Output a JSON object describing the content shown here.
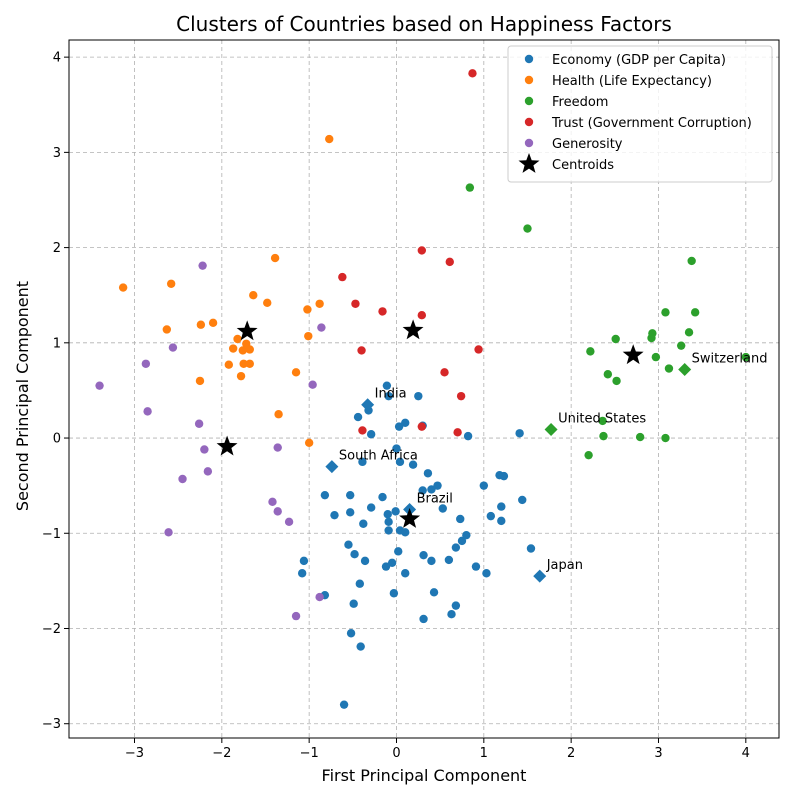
{
  "chart_data": {
    "type": "scatter",
    "title": "Clusters of Countries based on Happiness Factors",
    "xlabel": "First Principal Component",
    "ylabel": "Second Principal Component",
    "xlim": [
      -3.75,
      4.38
    ],
    "ylim": [
      -3.15,
      4.18
    ],
    "xticks": [
      -3,
      -2,
      -1,
      0,
      1,
      2,
      3,
      4
    ],
    "yticks": [
      -3,
      -2,
      -1,
      0,
      1,
      2,
      3,
      4
    ],
    "xtick_labels": [
      "−3",
      "−2",
      "−1",
      "0",
      "1",
      "2",
      "3",
      "4"
    ],
    "ytick_labels": [
      "−3",
      "−2",
      "−1",
      "0",
      "1",
      "2",
      "3",
      "4"
    ],
    "grid": true,
    "legend_position": "top-right",
    "series": [
      {
        "name": "Economy (GDP per Capita)",
        "color": "#1f77b4",
        "points": [
          [
            -0.6,
            -2.8
          ],
          [
            -0.41,
            -2.19
          ],
          [
            -0.52,
            -2.05
          ],
          [
            -0.49,
            -1.74
          ],
          [
            -0.82,
            -1.65
          ],
          [
            -0.42,
            -1.53
          ],
          [
            -0.03,
            -1.63
          ],
          [
            -1.08,
            -1.42
          ],
          [
            -1.06,
            -1.29
          ],
          [
            -0.55,
            -1.12
          ],
          [
            -0.48,
            -1.22
          ],
          [
            -0.36,
            -1.29
          ],
          [
            -0.12,
            -1.35
          ],
          [
            -0.05,
            -1.31
          ],
          [
            0.02,
            -1.19
          ],
          [
            0.1,
            -1.42
          ],
          [
            0.31,
            -1.23
          ],
          [
            0.4,
            -1.29
          ],
          [
            0.43,
            -1.62
          ],
          [
            0.31,
            -1.9
          ],
          [
            0.63,
            -1.85
          ],
          [
            0.68,
            -1.76
          ],
          [
            0.6,
            -1.28
          ],
          [
            0.68,
            -1.15
          ],
          [
            0.75,
            -1.08
          ],
          [
            0.8,
            -1.02
          ],
          [
            0.91,
            -1.35
          ],
          [
            1.03,
            -1.42
          ],
          [
            1.54,
            -1.16
          ],
          [
            -0.82,
            -0.6
          ],
          [
            -0.71,
            -0.81
          ],
          [
            -0.53,
            -0.78
          ],
          [
            -0.53,
            -0.6
          ],
          [
            -0.38,
            -0.9
          ],
          [
            -0.29,
            -0.73
          ],
          [
            -0.16,
            -0.62
          ],
          [
            -0.1,
            -0.8
          ],
          [
            -0.09,
            -0.88
          ],
          [
            -0.09,
            -0.97
          ],
          [
            -0.01,
            -0.77
          ],
          [
            0.04,
            -0.97
          ],
          [
            0.1,
            -0.99
          ],
          [
            0.3,
            -0.55
          ],
          [
            0.4,
            -0.54
          ],
          [
            0.47,
            -0.5
          ],
          [
            0.53,
            -0.74
          ],
          [
            0.73,
            -0.85
          ],
          [
            1.0,
            -0.5
          ],
          [
            1.08,
            -0.82
          ],
          [
            1.2,
            -0.72
          ],
          [
            1.2,
            -0.87
          ],
          [
            1.18,
            -0.39
          ],
          [
            1.23,
            -0.4
          ],
          [
            1.44,
            -0.65
          ],
          [
            -0.39,
            -0.25
          ],
          [
            0.04,
            -0.25
          ],
          [
            0.19,
            -0.28
          ],
          [
            0.36,
            -0.37
          ],
          [
            0.0,
            -0.11
          ],
          [
            -0.44,
            0.22
          ],
          [
            -0.32,
            0.29
          ],
          [
            -0.29,
            0.04
          ],
          [
            0.03,
            0.12
          ],
          [
            0.1,
            0.16
          ],
          [
            0.25,
            0.44
          ],
          [
            0.3,
            0.13
          ],
          [
            0.82,
            0.02
          ],
          [
            1.41,
            0.05
          ],
          [
            -0.11,
            0.55
          ],
          [
            -0.09,
            0.44
          ]
        ]
      },
      {
        "name": "Health (Life Expectancy)",
        "color": "#ff7f0e",
        "points": [
          [
            -0.77,
            3.14
          ],
          [
            -3.13,
            1.58
          ],
          [
            -2.58,
            1.62
          ],
          [
            -1.39,
            1.89
          ],
          [
            -1.64,
            1.5
          ],
          [
            -1.48,
            1.42
          ],
          [
            -0.88,
            1.41
          ],
          [
            -1.02,
            1.35
          ],
          [
            -2.1,
            1.21
          ],
          [
            -2.24,
            1.19
          ],
          [
            -2.63,
            1.14
          ],
          [
            -1.82,
            1.04
          ],
          [
            -1.72,
            0.99
          ],
          [
            -1.76,
            0.92
          ],
          [
            -1.87,
            0.94
          ],
          [
            -1.68,
            0.93
          ],
          [
            -1.75,
            0.78
          ],
          [
            -1.92,
            0.77
          ],
          [
            -1.68,
            0.78
          ],
          [
            -1.01,
            1.07
          ],
          [
            -1.15,
            0.69
          ],
          [
            -1.78,
            0.65
          ],
          [
            -2.25,
            0.6
          ],
          [
            -1.35,
            0.25
          ],
          [
            -1.0,
            -0.05
          ]
        ]
      },
      {
        "name": "Freedom",
        "color": "#2ca02c",
        "points": [
          [
            0.84,
            2.63
          ],
          [
            1.5,
            2.2
          ],
          [
            3.38,
            1.86
          ],
          [
            3.08,
            1.32
          ],
          [
            3.42,
            1.32
          ],
          [
            2.51,
            1.04
          ],
          [
            2.93,
            1.1
          ],
          [
            2.92,
            1.05
          ],
          [
            3.35,
            1.11
          ],
          [
            3.26,
            0.97
          ],
          [
            2.22,
            0.91
          ],
          [
            2.97,
            0.85
          ],
          [
            3.12,
            0.73
          ],
          [
            2.42,
            0.67
          ],
          [
            2.52,
            0.6
          ],
          [
            4.0,
            0.85
          ],
          [
            2.36,
            0.18
          ],
          [
            2.37,
            0.02
          ],
          [
            2.79,
            0.01
          ],
          [
            3.08,
            0.0
          ],
          [
            2.2,
            -0.18
          ]
        ]
      },
      {
        "name": "Trust (Government Corruption)",
        "color": "#d62728",
        "points": [
          [
            0.87,
            3.83
          ],
          [
            0.29,
            1.97
          ],
          [
            0.61,
            1.85
          ],
          [
            -0.62,
            1.69
          ],
          [
            -0.47,
            1.41
          ],
          [
            -0.16,
            1.33
          ],
          [
            0.29,
            1.29
          ],
          [
            0.94,
            0.93
          ],
          [
            -0.4,
            0.92
          ],
          [
            0.55,
            0.69
          ],
          [
            0.74,
            0.44
          ],
          [
            0.29,
            0.12
          ],
          [
            0.7,
            0.06
          ],
          [
            -0.39,
            0.08
          ]
        ]
      },
      {
        "name": "Generosity",
        "color": "#9467bd",
        "points": [
          [
            -2.22,
            1.81
          ],
          [
            -0.86,
            1.16
          ],
          [
            -2.56,
            0.95
          ],
          [
            -2.87,
            0.78
          ],
          [
            -3.4,
            0.55
          ],
          [
            -0.96,
            0.56
          ],
          [
            -2.85,
            0.28
          ],
          [
            -2.26,
            0.15
          ],
          [
            -2.2,
            -0.12
          ],
          [
            -1.36,
            -0.1
          ],
          [
            -2.16,
            -0.35
          ],
          [
            -2.45,
            -0.43
          ],
          [
            -1.42,
            -0.67
          ],
          [
            -1.36,
            -0.77
          ],
          [
            -1.23,
            -0.88
          ],
          [
            -2.61,
            -0.99
          ],
          [
            -0.88,
            -1.67
          ],
          [
            -1.15,
            -1.87
          ]
        ]
      }
    ],
    "centroids": {
      "name": "Centroids",
      "color": "#000000",
      "points": [
        [
          -1.71,
          1.12
        ],
        [
          0.19,
          1.13
        ],
        [
          -1.94,
          -0.09
        ],
        [
          2.71,
          0.87
        ],
        [
          0.15,
          -0.85
        ]
      ]
    },
    "annotations": [
      {
        "text": "India",
        "x": -0.33,
        "y": 0.35,
        "color": "#1f77b4"
      },
      {
        "text": "South Africa",
        "x": -0.74,
        "y": -0.3,
        "color": "#1f77b4"
      },
      {
        "text": "Brazil",
        "x": 0.15,
        "y": -0.75,
        "color": "#1f77b4"
      },
      {
        "text": "Japan",
        "x": 1.64,
        "y": -1.45,
        "color": "#1f77b4"
      },
      {
        "text": "United States",
        "x": 1.77,
        "y": 0.09,
        "color": "#2ca02c"
      },
      {
        "text": "Switzerland",
        "x": 3.3,
        "y": 0.72,
        "color": "#2ca02c"
      }
    ]
  }
}
